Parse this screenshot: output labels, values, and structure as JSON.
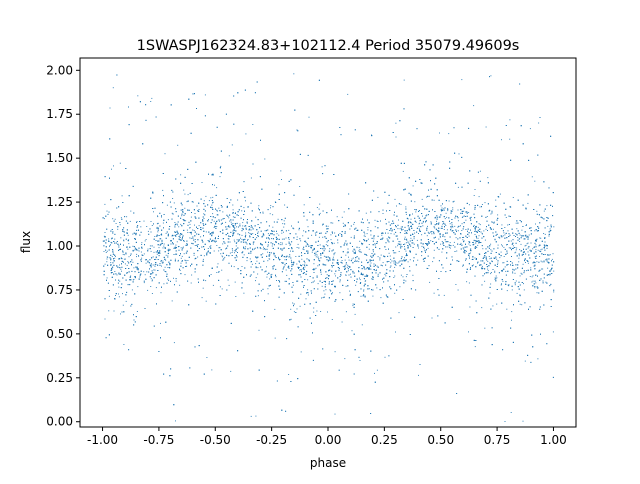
{
  "chart_data": {
    "type": "scatter",
    "title": "1SWASPJ162324.83+102112.4 Period 35079.49609s",
    "xlabel": "phase",
    "ylabel": "flux",
    "xlim": [
      -1.1,
      1.1
    ],
    "ylim": [
      -0.03,
      2.07
    ],
    "xticks": [
      "-1.00",
      "-0.75",
      "-0.50",
      "-0.25",
      "0.00",
      "0.25",
      "0.50",
      "0.75",
      "1.00"
    ],
    "xtick_values": [
      -1,
      -0.75,
      -0.5,
      -0.25,
      0,
      0.25,
      0.5,
      0.75,
      1
    ],
    "yticks": [
      "0.00",
      "0.25",
      "0.50",
      "0.75",
      "1.00",
      "1.25",
      "1.50",
      "1.75",
      "2.00"
    ],
    "ytick_values": [
      0,
      0.25,
      0.5,
      0.75,
      1,
      1.25,
      1.5,
      1.75,
      2
    ],
    "grid": false,
    "marker_color": "#1f77b4",
    "trend": {
      "phase": [
        -1.0,
        -0.9,
        -0.8,
        -0.7,
        -0.6,
        -0.5,
        -0.4,
        -0.3,
        -0.2,
        -0.1,
        0.0,
        0.1,
        0.2,
        0.3,
        0.4,
        0.5,
        0.6,
        0.7,
        0.8,
        0.9,
        1.0
      ],
      "flux": [
        0.95,
        0.93,
        0.94,
        1.02,
        1.09,
        1.1,
        1.06,
        1.0,
        0.96,
        0.93,
        0.92,
        0.92,
        0.95,
        1.03,
        1.09,
        1.1,
        1.06,
        1.0,
        0.96,
        0.94,
        0.95
      ]
    },
    "flux_spread": 0.12,
    "flux_range": [
      0.0,
      2.0
    ]
  }
}
